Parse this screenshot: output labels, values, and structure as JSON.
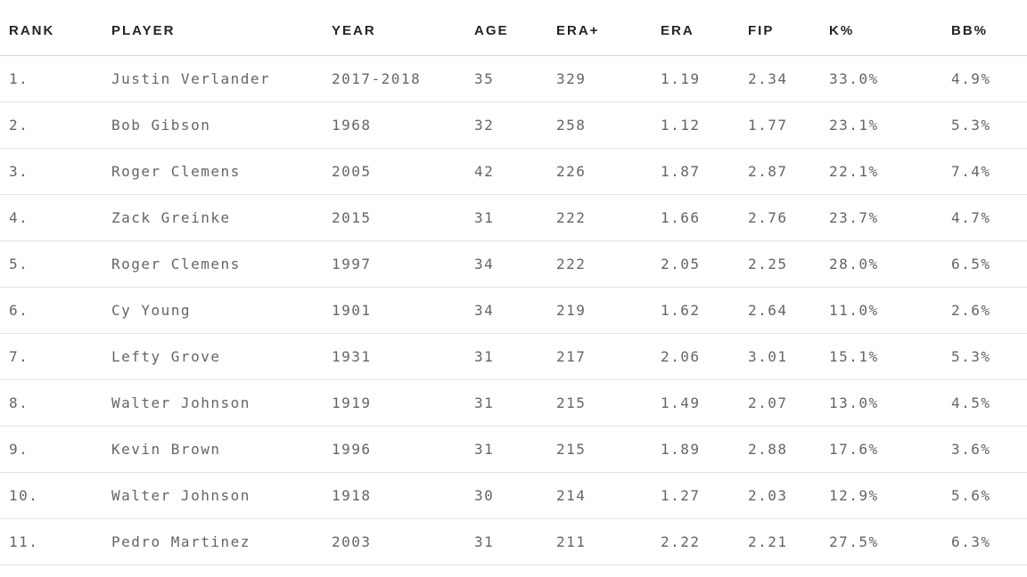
{
  "table": {
    "columns": [
      {
        "key": "rank",
        "label": "RANK"
      },
      {
        "key": "player",
        "label": "PLAYER"
      },
      {
        "key": "year",
        "label": "YEAR"
      },
      {
        "key": "age",
        "label": "AGE"
      },
      {
        "key": "era_plus",
        "label": "ERA+"
      },
      {
        "key": "era",
        "label": "ERA"
      },
      {
        "key": "fip",
        "label": "FIP"
      },
      {
        "key": "k_pct",
        "label": "K%"
      },
      {
        "key": "bb_pct",
        "label": "BB%"
      }
    ],
    "rows": [
      {
        "rank": "1.",
        "player": "Justin Verlander",
        "year": "2017-2018",
        "age": "35",
        "era_plus": "329",
        "era": "1.19",
        "fip": "2.34",
        "k_pct": "33.0%",
        "bb_pct": "4.9%"
      },
      {
        "rank": "2.",
        "player": "Bob Gibson",
        "year": "1968",
        "age": "32",
        "era_plus": "258",
        "era": "1.12",
        "fip": "1.77",
        "k_pct": "23.1%",
        "bb_pct": "5.3%"
      },
      {
        "rank": "3.",
        "player": "Roger Clemens",
        "year": "2005",
        "age": "42",
        "era_plus": "226",
        "era": "1.87",
        "fip": "2.87",
        "k_pct": "22.1%",
        "bb_pct": "7.4%"
      },
      {
        "rank": "4.",
        "player": "Zack Greinke",
        "year": "2015",
        "age": "31",
        "era_plus": "222",
        "era": "1.66",
        "fip": "2.76",
        "k_pct": "23.7%",
        "bb_pct": "4.7%"
      },
      {
        "rank": "5.",
        "player": "Roger Clemens",
        "year": "1997",
        "age": "34",
        "era_plus": "222",
        "era": "2.05",
        "fip": "2.25",
        "k_pct": "28.0%",
        "bb_pct": "6.5%"
      },
      {
        "rank": "6.",
        "player": "Cy Young",
        "year": "1901",
        "age": "34",
        "era_plus": "219",
        "era": "1.62",
        "fip": "2.64",
        "k_pct": "11.0%",
        "bb_pct": "2.6%"
      },
      {
        "rank": "7.",
        "player": "Lefty Grove",
        "year": "1931",
        "age": "31",
        "era_plus": "217",
        "era": "2.06",
        "fip": "3.01",
        "k_pct": "15.1%",
        "bb_pct": "5.3%"
      },
      {
        "rank": "8.",
        "player": "Walter Johnson",
        "year": "1919",
        "age": "31",
        "era_plus": "215",
        "era": "1.49",
        "fip": "2.07",
        "k_pct": "13.0%",
        "bb_pct": "4.5%"
      },
      {
        "rank": "9.",
        "player": "Kevin Brown",
        "year": "1996",
        "age": "31",
        "era_plus": "215",
        "era": "1.89",
        "fip": "2.88",
        "k_pct": "17.6%",
        "bb_pct": "3.6%"
      },
      {
        "rank": "10.",
        "player": "Walter Johnson",
        "year": "1918",
        "age": "30",
        "era_plus": "214",
        "era": "1.27",
        "fip": "2.03",
        "k_pct": "12.9%",
        "bb_pct": "5.6%"
      },
      {
        "rank": "11.",
        "player": "Pedro Martinez",
        "year": "2003",
        "age": "31",
        "era_plus": "211",
        "era": "2.22",
        "fip": "2.21",
        "k_pct": "27.5%",
        "bb_pct": "6.3%"
      }
    ]
  },
  "colors": {
    "header_text": "#222429",
    "body_text": "#63656a",
    "divider": "#e3e3e3",
    "header_divider": "#d8d8d8",
    "background": "#ffffff"
  },
  "chart_data": {
    "type": "table",
    "title": "",
    "columns": [
      "RANK",
      "PLAYER",
      "YEAR",
      "AGE",
      "ERA+",
      "ERA",
      "FIP",
      "K%",
      "BB%"
    ],
    "rows": [
      [
        "1.",
        "Justin Verlander",
        "2017-2018",
        35,
        329,
        1.19,
        2.34,
        "33.0%",
        "4.9%"
      ],
      [
        "2.",
        "Bob Gibson",
        "1968",
        32,
        258,
        1.12,
        1.77,
        "23.1%",
        "5.3%"
      ],
      [
        "3.",
        "Roger Clemens",
        "2005",
        42,
        226,
        1.87,
        2.87,
        "22.1%",
        "7.4%"
      ],
      [
        "4.",
        "Zack Greinke",
        "2015",
        31,
        222,
        1.66,
        2.76,
        "23.7%",
        "4.7%"
      ],
      [
        "5.",
        "Roger Clemens",
        "1997",
        34,
        222,
        2.05,
        2.25,
        "28.0%",
        "6.5%"
      ],
      [
        "6.",
        "Cy Young",
        "1901",
        34,
        219,
        1.62,
        2.64,
        "11.0%",
        "2.6%"
      ],
      [
        "7.",
        "Lefty Grove",
        "1931",
        31,
        217,
        2.06,
        3.01,
        "15.1%",
        "5.3%"
      ],
      [
        "8.",
        "Walter Johnson",
        "1919",
        31,
        215,
        1.49,
        2.07,
        "13.0%",
        "4.5%"
      ],
      [
        "9.",
        "Kevin Brown",
        "1996",
        31,
        215,
        1.89,
        2.88,
        "17.6%",
        "3.6%"
      ],
      [
        "10.",
        "Walter Johnson",
        "1918",
        30,
        214,
        1.27,
        2.03,
        "12.9%",
        "5.6%"
      ],
      [
        "11.",
        "Pedro Martinez",
        "2003",
        31,
        211,
        2.22,
        2.21,
        "27.5%",
        "6.3%"
      ]
    ]
  }
}
